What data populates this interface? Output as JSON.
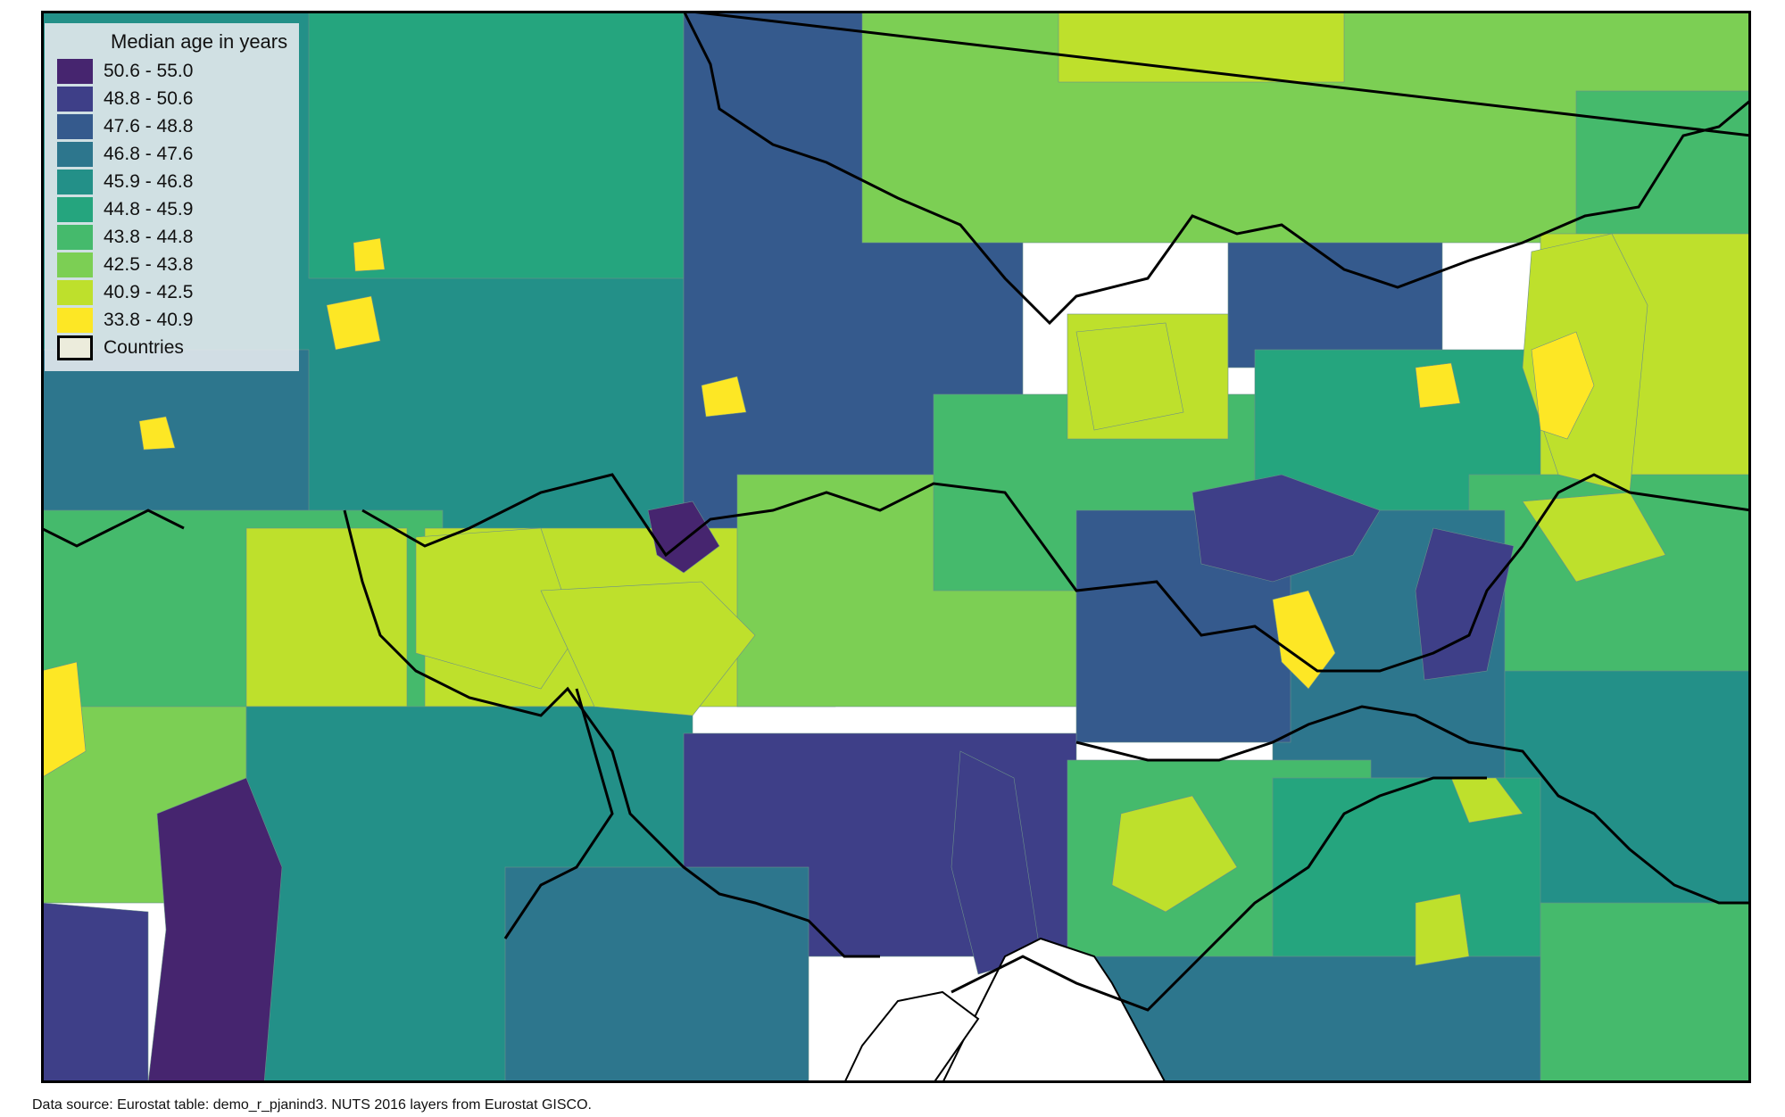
{
  "map": {
    "legend_title": "Median age in years",
    "classes": [
      {
        "label": "50.6 - 55.0",
        "color": "#46256f"
      },
      {
        "label": "48.8 - 50.6",
        "color": "#3e3f88"
      },
      {
        "label": "47.6 - 48.8",
        "color": "#355a8d"
      },
      {
        "label": "46.8 - 47.6",
        "color": "#2d768d"
      },
      {
        "label": "45.9 - 46.8",
        "color": "#239088"
      },
      {
        "label": "44.8 - 45.9",
        "color": "#25a57e"
      },
      {
        "label": "43.8 - 44.8",
        "color": "#45ba6c"
      },
      {
        "label": "42.5 - 43.8",
        "color": "#7ccf54"
      },
      {
        "label": "40.9 - 42.5",
        "color": "#bee02c"
      },
      {
        "label": "33.8 - 40.9",
        "color": "#fde725"
      }
    ],
    "countries_label": "Countries",
    "countries_color": "#ececdc",
    "sea_color": "#ffffff",
    "source": "Data source: Eurostat table: demo_r_pjanind3. NUTS 2016 layers from Eurostat GISCO."
  }
}
